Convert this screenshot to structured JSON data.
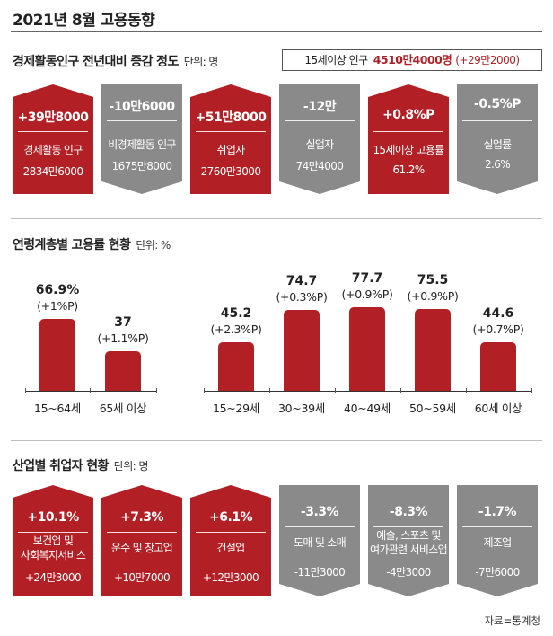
{
  "title": "2021년 8월 고용동향",
  "sections": {
    "activity": {
      "title": "경제활동인구 전년대비 증감 정도",
      "unit": "단위: 명"
    },
    "age": {
      "title": "연령계층별 고용률 현황",
      "unit": "단위: %"
    },
    "industry": {
      "title": "산업별 취업자 현황",
      "unit": "단위: 명"
    }
  },
  "population_box": {
    "label": "15세이상 인구",
    "value": "4510만4000명",
    "change": "(+29만2000)"
  },
  "activity_cards": [
    {
      "delta": "+39만8000",
      "label": "경제활동 인구",
      "value": "2834만6000",
      "direction": "up"
    },
    {
      "delta": "-10만6000",
      "label": "비경제활동 인구",
      "value": "1675만8000",
      "direction": "down"
    },
    {
      "delta": "+51만8000",
      "label": "취업자",
      "value": "2760만3000",
      "direction": "up"
    },
    {
      "delta": "-12만",
      "label": "실업자",
      "value": "74만4000",
      "direction": "down"
    },
    {
      "delta": "+0.8%P",
      "label": "15세이상 고용률",
      "value": "61.2%",
      "direction": "up"
    },
    {
      "delta": "-0.5%P",
      "label": "실업률",
      "value": "2.6%",
      "direction": "down"
    }
  ],
  "chart_data": {
    "type": "bar",
    "title": "연령계층별 고용률 현황",
    "ylabel": "단위: %",
    "ylim": [
      0,
      80
    ],
    "categories": [
      "15~64세",
      "65세 이상",
      "15~29세",
      "30~39세",
      "40~49세",
      "50~59세",
      "60세 이상"
    ],
    "values": [
      66.9,
      37,
      45.2,
      74.7,
      77.7,
      75.5,
      44.6
    ],
    "value_labels": [
      "66.9%",
      "37",
      "45.2",
      "74.7",
      "77.7",
      "75.5",
      "44.6"
    ],
    "changes": [
      "(+1%P)",
      "(+1.1%P)",
      "(+2.3%P)",
      "(+0.3%P)",
      "(+0.9%P)",
      "(+0.9%P)",
      "(+0.7%P)"
    ],
    "groups": [
      [
        0,
        1
      ],
      [
        2,
        3,
        4,
        5,
        6
      ]
    ],
    "color": "#b21f24"
  },
  "industry_cards": [
    {
      "delta": "+10.1%",
      "label": [
        "보건업 및",
        "사회복지서비스"
      ],
      "value": "+24만3000",
      "direction": "up"
    },
    {
      "delta": "+7.3%",
      "label": [
        "운수 및 창고업"
      ],
      "value": "+10만7000",
      "direction": "up"
    },
    {
      "delta": "+6.1%",
      "label": [
        "건설업"
      ],
      "value": "+12만3000",
      "direction": "up"
    },
    {
      "delta": "-3.3%",
      "label": [
        "도매 및 소매"
      ],
      "value": "-11만3000",
      "direction": "down"
    },
    {
      "delta": "-8.3%",
      "label": [
        "예술, 스포츠 및",
        "여가관련 서비스업"
      ],
      "value": "-4만3000",
      "direction": "down"
    },
    {
      "delta": "-1.7%",
      "label": [
        "제조업"
      ],
      "value": "-7만6000",
      "direction": "down"
    }
  ],
  "colors": {
    "up": "#b21f24",
    "down": "#8a8a8a"
  },
  "source": "자료=통계청"
}
